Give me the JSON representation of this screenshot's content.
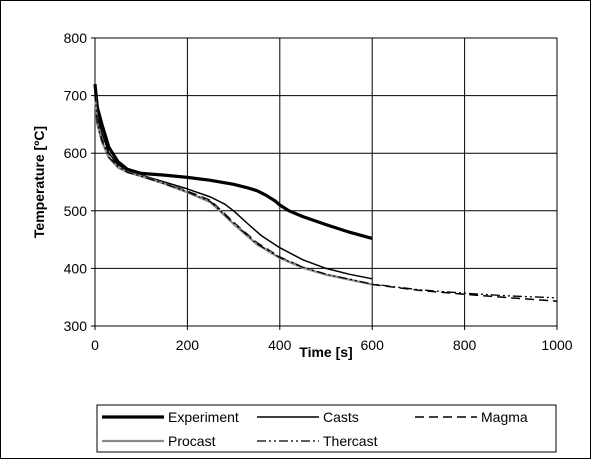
{
  "chart_data": {
    "type": "line",
    "title": "",
    "xlabel": "Time [s]",
    "ylabel": "Temperature [ºC]",
    "xlim": [
      0,
      1000
    ],
    "ylim": [
      300,
      800
    ],
    "xticks": [
      "0",
      "200",
      "400",
      "600",
      "800",
      "1000"
    ],
    "yticks": [
      "300",
      "400",
      "500",
      "600",
      "700",
      "800"
    ],
    "grid": true,
    "legend_position": "bottom",
    "series": [
      {
        "name": "Experiment",
        "color": "#000000",
        "style": "solid-thick",
        "x": [
          0,
          5,
          15,
          30,
          50,
          70,
          100,
          150,
          200,
          250,
          300,
          330,
          350,
          370,
          390,
          400,
          420,
          450,
          500,
          550,
          600
        ],
        "y": [
          720,
          680,
          650,
          610,
          585,
          572,
          565,
          562,
          558,
          553,
          546,
          540,
          535,
          527,
          517,
          510,
          500,
          490,
          476,
          463,
          452
        ]
      },
      {
        "name": "Casts",
        "color": "#000000",
        "style": "solid",
        "x": [
          0,
          5,
          15,
          30,
          50,
          70,
          100,
          150,
          200,
          250,
          280,
          300,
          330,
          360,
          400,
          450,
          500,
          550,
          600
        ],
        "y": [
          700,
          665,
          635,
          600,
          580,
          570,
          562,
          550,
          538,
          524,
          512,
          500,
          478,
          457,
          436,
          415,
          400,
          390,
          382
        ]
      },
      {
        "name": "Magma",
        "color": "#000000",
        "style": "dashed",
        "x": [
          0,
          5,
          15,
          30,
          50,
          70,
          100,
          150,
          200,
          250,
          300,
          350,
          400,
          450,
          500,
          600,
          700,
          800,
          900,
          1000
        ],
        "y": [
          705,
          655,
          625,
          595,
          577,
          568,
          560,
          548,
          534,
          518,
          480,
          445,
          420,
          402,
          390,
          372,
          362,
          355,
          349,
          343
        ]
      },
      {
        "name": "Procast",
        "color": "#8c8c8c",
        "style": "solid-gray",
        "x": [
          0,
          5,
          15,
          30,
          50,
          70,
          100,
          150,
          200,
          250,
          300,
          350,
          400,
          450,
          500,
          600
        ],
        "y": [
          700,
          650,
          620,
          592,
          575,
          567,
          560,
          547,
          532,
          515,
          477,
          442,
          418,
          401,
          389,
          372
        ]
      },
      {
        "name": "Thercast",
        "color": "#000000",
        "style": "dash-dot",
        "x": [
          0,
          5,
          15,
          30,
          50,
          70,
          100,
          150,
          200,
          250,
          300,
          350,
          400,
          450,
          500,
          600,
          700,
          800,
          900,
          1000
        ],
        "y": [
          705,
          652,
          622,
          593,
          576,
          567,
          560,
          547,
          533,
          516,
          479,
          443,
          419,
          402,
          390,
          373,
          363,
          357,
          352,
          349
        ]
      }
    ]
  }
}
